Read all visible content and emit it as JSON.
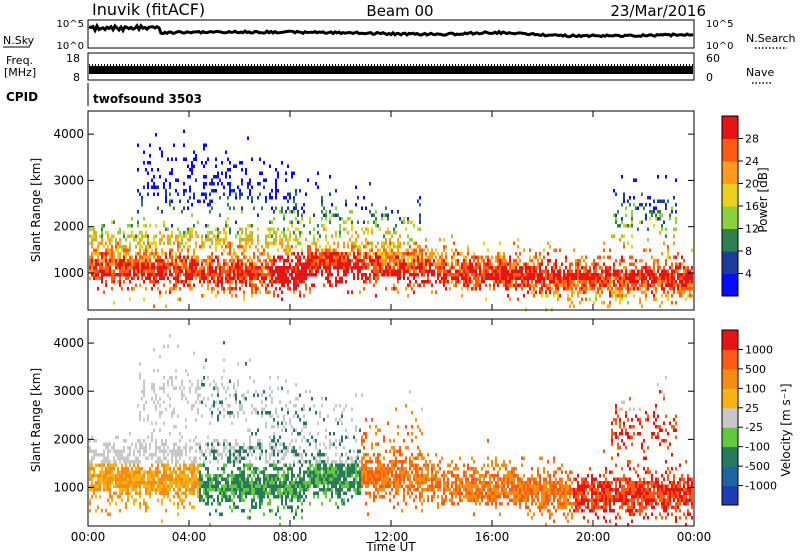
{
  "header": {
    "station": "Inuvik (fitACF)",
    "beam": "Beam 00",
    "date": "23/Mar/2016"
  },
  "noise_panel": {
    "left_label": "N.Sky",
    "right_label": "N.Search",
    "left_ticks": [
      "10^5",
      "10^0"
    ],
    "right_ticks": [
      "10^5",
      "10^0"
    ]
  },
  "freq_panel": {
    "left_label_1": "Freq.",
    "left_label_2": "[MHz]",
    "right_label": "Nave",
    "left_ticks": [
      "18",
      "8"
    ],
    "right_ticks": [
      "60",
      "0"
    ]
  },
  "cpid_panel": {
    "label": "CPID",
    "value": "twofsound 3503"
  },
  "chart_data": [
    {
      "type": "heatmap",
      "parameter": "power",
      "ylabel": "Slant Range [km]",
      "ylim": [
        200,
        4500
      ],
      "yticks": [
        "1000",
        "2000",
        "3000",
        "4000"
      ],
      "colorbar": {
        "label": "Power [dB]",
        "ticks": [
          "28",
          "24",
          "20",
          "16",
          "12",
          "8",
          "4"
        ],
        "colors": [
          "#0a0aff",
          "#1e3c9a",
          "#2f7f4f",
          "#8cd23c",
          "#e8d21e",
          "#ff9a1e",
          "#ff5a14",
          "#e61414"
        ]
      }
    },
    {
      "type": "heatmap",
      "parameter": "velocity",
      "ylabel": "Slant Range [km]",
      "xlabel": "Time UT",
      "ylim": [
        200,
        4500
      ],
      "yticks": [
        "1000",
        "2000",
        "3000",
        "4000"
      ],
      "xticks": [
        "00:00",
        "04:00",
        "08:00",
        "12:00",
        "16:00",
        "20:00",
        "00:00"
      ],
      "colorbar": {
        "label": "Velocity [m s⁻¹]",
        "ticks": [
          "1000",
          "500",
          "100",
          "25",
          "-25",
          "-100",
          "-500",
          "-1000"
        ],
        "colors": [
          "#1e3cb4",
          "#1e64a0",
          "#287a5a",
          "#62c83c",
          "#c8c8c8",
          "#f5b414",
          "#f58c14",
          "#ff5a14",
          "#e61414"
        ]
      }
    }
  ]
}
